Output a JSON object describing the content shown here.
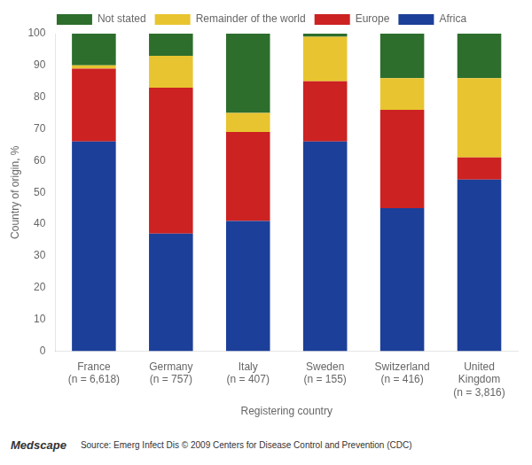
{
  "chart_data": {
    "type": "bar",
    "stacked": true,
    "categories": [
      "France\n(n = 6,618)",
      "Germany\n(n = 757)",
      "Italy\n(n = 407)",
      "Sweden\n(n = 155)",
      "Switzerland\n(n = 416)",
      "United\nKingdom\n(n = 3,816)"
    ],
    "series": [
      {
        "name": "Africa",
        "color": "#1c3f99",
        "values": [
          66,
          37,
          41,
          66,
          45,
          54
        ]
      },
      {
        "name": "Europe",
        "color": "#cc2222",
        "values": [
          23,
          46,
          28,
          19,
          31,
          7
        ]
      },
      {
        "name": "Remainder of the world",
        "color": "#e8c430",
        "values": [
          1,
          10,
          6,
          14,
          10,
          25
        ]
      },
      {
        "name": "Not stated",
        "color": "#2d6e2d",
        "values": [
          10,
          7,
          25,
          1,
          14,
          14
        ]
      }
    ],
    "x_label": "Registering country",
    "y_label": "Country of origin, %",
    "ylim": [
      0,
      100
    ],
    "yticks": [
      0,
      10,
      20,
      30,
      40,
      50,
      60,
      70,
      80,
      90,
      100
    ],
    "grid": false,
    "legend": "top",
    "annotations": [
      "Medscape",
      "Source: Emerg Infect Dis © 2009 Centers for Disease Control and Prevention (CDC)"
    ]
  }
}
